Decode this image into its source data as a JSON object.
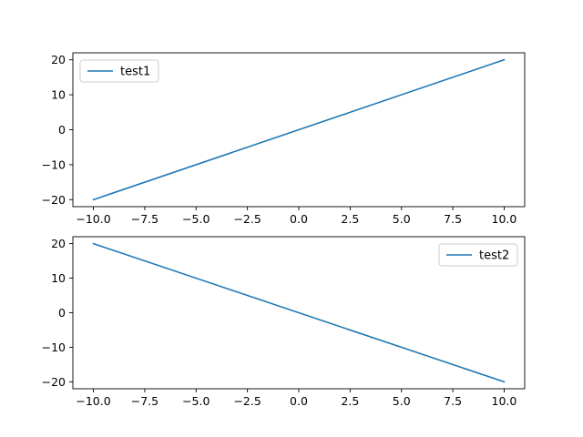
{
  "chart_data": [
    {
      "type": "line",
      "x": [
        -10,
        10
      ],
      "series": [
        {
          "name": "test1",
          "values": [
            -20,
            20
          ],
          "color": "#1f77b4"
        }
      ],
      "xlim": [
        -11,
        11
      ],
      "ylim": [
        -22,
        22
      ],
      "xticks": [
        -10,
        -7.5,
        -5,
        -2.5,
        0,
        2.5,
        5,
        7.5,
        10
      ],
      "xtick_labels": [
        "−10.0",
        "−7.5",
        "−5.0",
        "−2.5",
        "0.0",
        "2.5",
        "5.0",
        "7.5",
        "10.0"
      ],
      "yticks": [
        -20,
        -10,
        0,
        10,
        20
      ],
      "ytick_labels": [
        "−20",
        "−10",
        "0",
        "10",
        "20"
      ],
      "grid": false,
      "legend_position": "upper-left",
      "title": "",
      "xlabel": "",
      "ylabel": ""
    },
    {
      "type": "line",
      "x": [
        -10,
        10
      ],
      "series": [
        {
          "name": "test2",
          "values": [
            20,
            -20
          ],
          "color": "#1f77b4"
        }
      ],
      "xlim": [
        -11,
        11
      ],
      "ylim": [
        -22,
        22
      ],
      "xticks": [
        -10,
        -7.5,
        -5,
        -2.5,
        0,
        2.5,
        5,
        7.5,
        10
      ],
      "xtick_labels": [
        "−10.0",
        "−7.5",
        "−5.0",
        "−2.5",
        "0.0",
        "2.5",
        "5.0",
        "7.5",
        "10.0"
      ],
      "yticks": [
        -20,
        -10,
        0,
        10,
        20
      ],
      "ytick_labels": [
        "−20",
        "−10",
        "0",
        "10",
        "20"
      ],
      "grid": false,
      "legend_position": "upper-right",
      "title": "",
      "xlabel": "",
      "ylabel": ""
    }
  ]
}
